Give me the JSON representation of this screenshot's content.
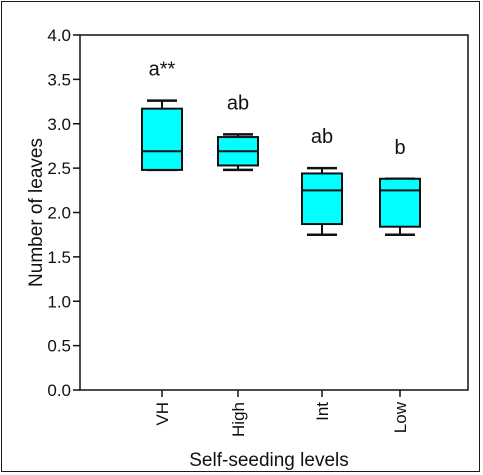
{
  "chart_data": {
    "type": "box",
    "title": "",
    "xlabel": "Self-seeding levels",
    "ylabel": "Number of leaves",
    "ylim": [
      0.0,
      4.0
    ],
    "yticks": [
      "0.0",
      "0.5",
      "1.0",
      "1.5",
      "2.0",
      "2.5",
      "3.0",
      "3.5",
      "4.0"
    ],
    "categories": [
      "VH",
      "High",
      "Int",
      "Low"
    ],
    "boxes": [
      {
        "category": "VH",
        "min": 2.48,
        "q1": 2.48,
        "median": 2.69,
        "q3": 3.17,
        "max": 3.26,
        "letter": "a**"
      },
      {
        "category": "High",
        "min": 2.48,
        "q1": 2.53,
        "median": 2.69,
        "q3": 2.85,
        "max": 2.88,
        "letter": "ab"
      },
      {
        "category": "Int",
        "min": 1.75,
        "q1": 1.87,
        "median": 2.25,
        "q3": 2.44,
        "max": 2.5,
        "letter": "ab"
      },
      {
        "category": "Low",
        "min": 1.75,
        "q1": 1.84,
        "median": 2.25,
        "q3": 2.38,
        "max": 2.38,
        "letter": "b"
      }
    ],
    "box_color": "#00ffff",
    "stroke_color": "#111111",
    "grid": false
  }
}
